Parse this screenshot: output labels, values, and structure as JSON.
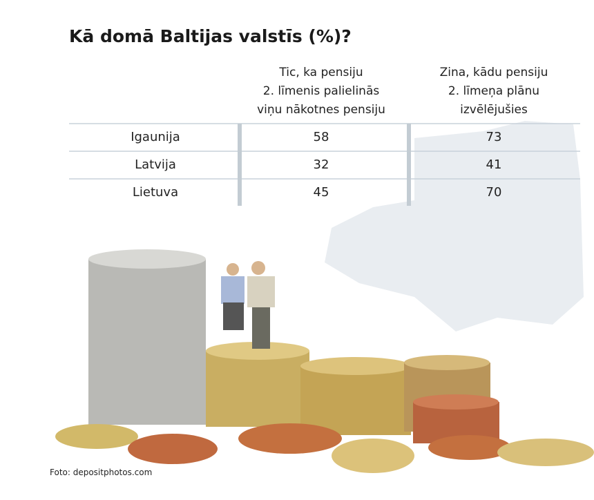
{
  "title": "Kā domā Baltijas valstīs (%)?",
  "table": {
    "header": [
      "Tic, ka pensiju\n2. līmenis palielinās\nviņu nākotnes pensiju",
      "Zina, kādu pensiju\n2. līmeņa plānu\nizvēlējušies"
    ],
    "rows": [
      [
        "Igaunija",
        58,
        73
      ],
      [
        "Latvija",
        32,
        41
      ],
      [
        "Lietuva",
        45,
        70
      ]
    ]
  },
  "credit": "Foto: depositphotos.com"
}
